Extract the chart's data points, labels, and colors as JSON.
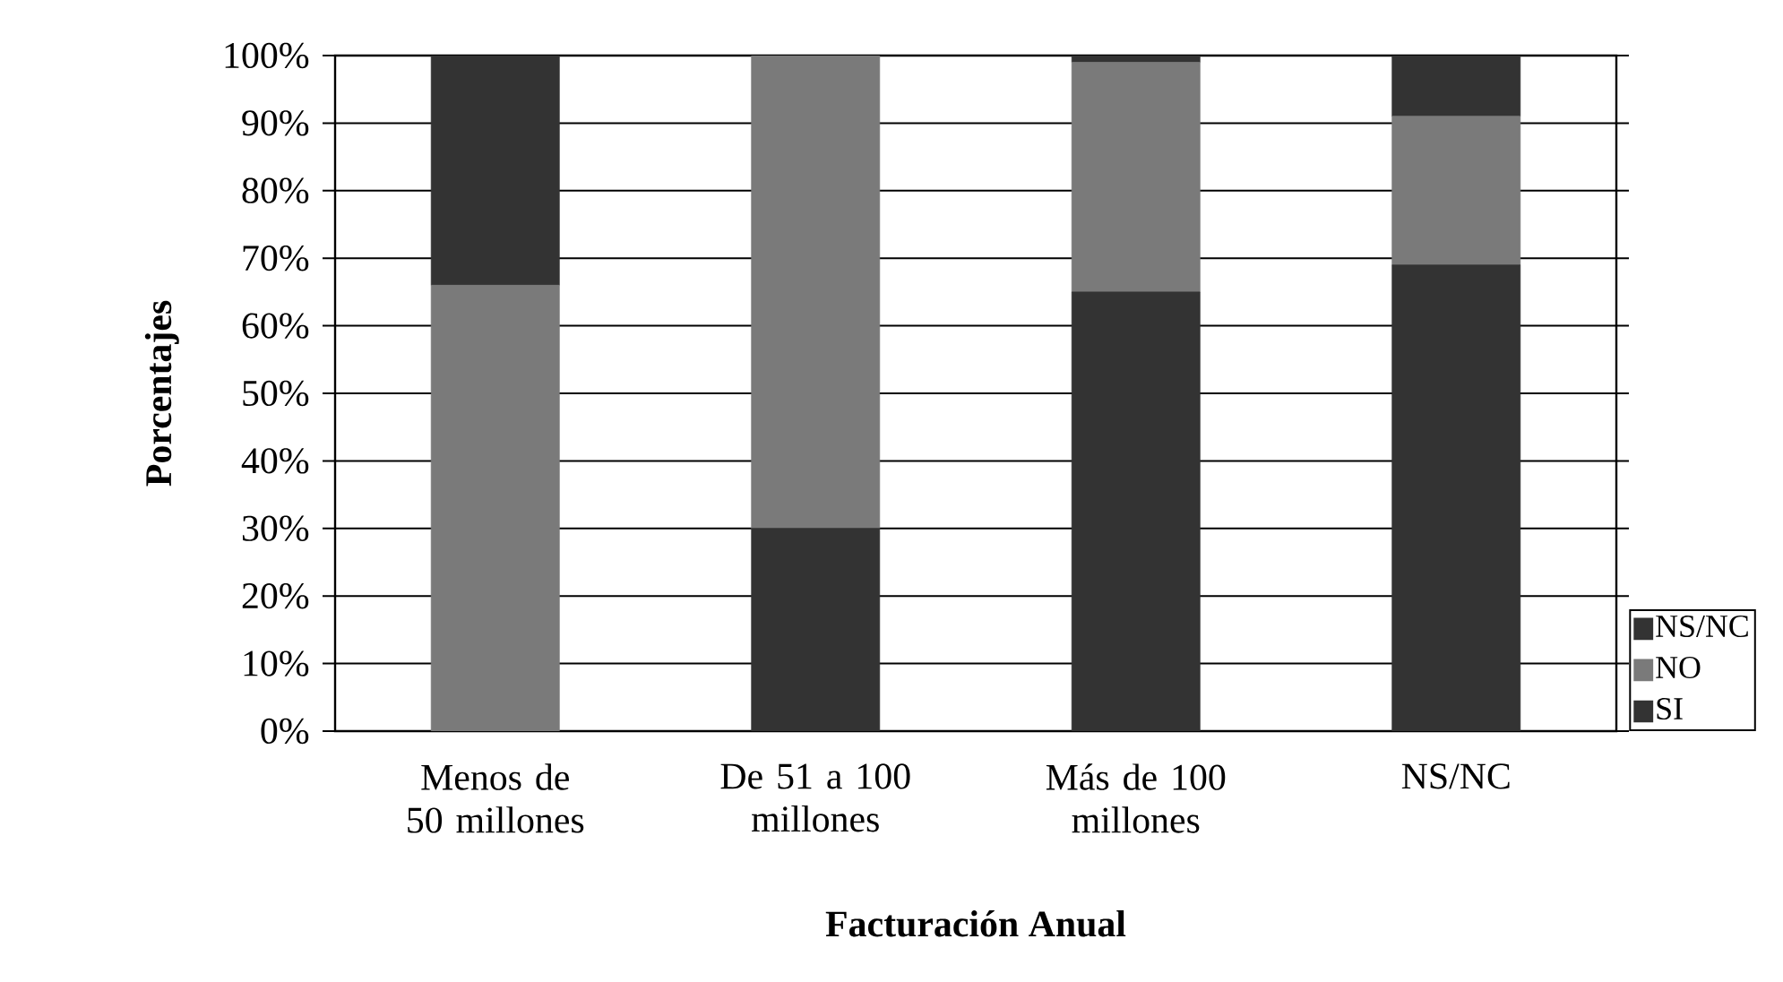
{
  "chart_data": {
    "type": "bar",
    "stacked": true,
    "xlabel": "Facturación Anual",
    "ylabel": "Porcentajes",
    "categories": [
      "Menos de 50 millones",
      "De 51 a 100 millones",
      "Más de 100 millones",
      "NS/NC"
    ],
    "series": [
      {
        "name": "SI",
        "color": "#333333",
        "values": [
          0,
          30,
          65,
          69
        ]
      },
      {
        "name": "NO",
        "color": "#7a7a7a",
        "values": [
          66,
          70,
          34,
          22
        ]
      },
      {
        "name": "NS/NC",
        "color": "#333333",
        "values": [
          34,
          0,
          1,
          9
        ]
      }
    ],
    "ylim": [
      0,
      100
    ],
    "yticks": [
      {
        "value": 0,
        "label": "0%"
      },
      {
        "value": 10,
        "label": "10%"
      },
      {
        "value": 20,
        "label": "20%"
      },
      {
        "value": 30,
        "label": "30%"
      },
      {
        "value": 40,
        "label": "40%"
      },
      {
        "value": 50,
        "label": "50%"
      },
      {
        "value": 60,
        "label": "60%"
      },
      {
        "value": 70,
        "label": "70%"
      },
      {
        "value": 80,
        "label": "80%"
      },
      {
        "value": 90,
        "label": "90%"
      },
      {
        "value": 100,
        "label": "100%"
      }
    ],
    "grid": "y",
    "legend": "right"
  }
}
